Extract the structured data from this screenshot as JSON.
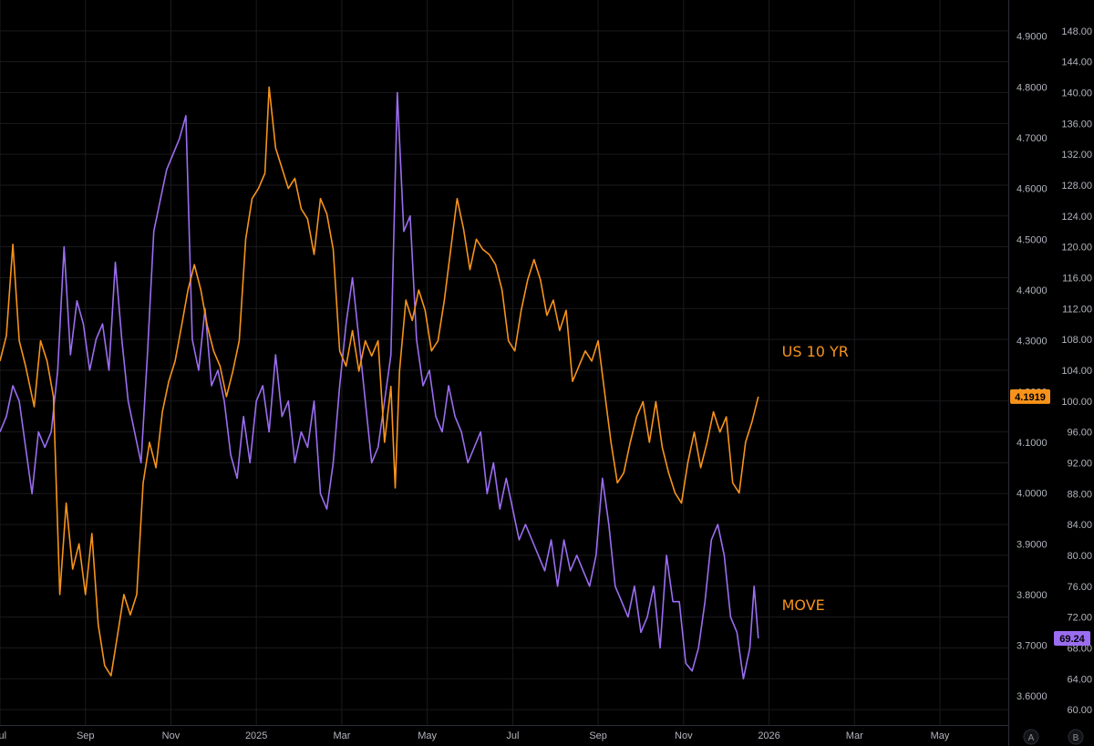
{
  "chart_data": {
    "type": "line",
    "title": "",
    "x_tick_labels": [
      "Jul",
      "Sep",
      "Nov",
      "2025",
      "Mar",
      "May",
      "Jul",
      "Sep",
      "Nov",
      "2026",
      "Mar",
      "May"
    ],
    "x_tick_months": [
      0,
      2,
      4,
      6,
      8,
      10,
      12,
      14,
      16,
      18,
      20,
      22
    ],
    "xlim_months": [
      0,
      23.6
    ],
    "grid": true,
    "y_axis_left_scale": {
      "ylim": [
        3.5429,
        4.9714
      ],
      "ticks": [
        "4.9000",
        "4.8000",
        "4.7000",
        "4.6000",
        "4.5000",
        "4.4000",
        "4.3000",
        "4.2000",
        "4.1000",
        "4.0000",
        "3.9000",
        "3.8000",
        "3.7000",
        "3.6000"
      ]
    },
    "y_axis_right_scale": {
      "ylim": [
        58.0,
        152.0
      ],
      "ticks": [
        "148.00",
        "144.00",
        "140.00",
        "136.00",
        "132.00",
        "128.00",
        "124.00",
        "120.00",
        "116.00",
        "112.00",
        "108.00",
        "104.00",
        "100.00",
        "96.00",
        "92.00",
        "88.00",
        "84.00",
        "80.00",
        "76.00",
        "72.00",
        "68.00",
        "64.00",
        "60.00"
      ]
    },
    "series": [
      {
        "name": "US 10 YR",
        "axis": "left",
        "color": "#f7931a",
        "last_value": "4.1919",
        "points": [
          [
            0,
            4.26
          ],
          [
            0.15,
            4.31
          ],
          [
            0.3,
            4.49
          ],
          [
            0.45,
            4.3
          ],
          [
            0.6,
            4.25
          ],
          [
            0.8,
            4.17
          ],
          [
            0.95,
            4.3
          ],
          [
            1.1,
            4.26
          ],
          [
            1.25,
            4.19
          ],
          [
            1.4,
            3.8
          ],
          [
            1.55,
            3.98
          ],
          [
            1.7,
            3.85
          ],
          [
            1.85,
            3.9
          ],
          [
            2.0,
            3.8
          ],
          [
            2.15,
            3.92
          ],
          [
            2.3,
            3.74
          ],
          [
            2.45,
            3.66
          ],
          [
            2.6,
            3.64
          ],
          [
            2.75,
            3.72
          ],
          [
            2.9,
            3.8
          ],
          [
            3.05,
            3.76
          ],
          [
            3.2,
            3.8
          ],
          [
            3.35,
            4.02
          ],
          [
            3.5,
            4.1
          ],
          [
            3.65,
            4.05
          ],
          [
            3.8,
            4.16
          ],
          [
            3.95,
            4.22
          ],
          [
            4.1,
            4.26
          ],
          [
            4.25,
            4.33
          ],
          [
            4.4,
            4.4
          ],
          [
            4.55,
            4.45
          ],
          [
            4.7,
            4.4
          ],
          [
            4.85,
            4.33
          ],
          [
            5.0,
            4.28
          ],
          [
            5.15,
            4.25
          ],
          [
            5.3,
            4.19
          ],
          [
            5.45,
            4.24
          ],
          [
            5.6,
            4.3
          ],
          [
            5.75,
            4.5
          ],
          [
            5.9,
            4.58
          ],
          [
            6.05,
            4.6
          ],
          [
            6.2,
            4.63
          ],
          [
            6.3,
            4.8
          ],
          [
            6.45,
            4.68
          ],
          [
            6.6,
            4.64
          ],
          [
            6.75,
            4.6
          ],
          [
            6.9,
            4.62
          ],
          [
            7.05,
            4.56
          ],
          [
            7.2,
            4.54
          ],
          [
            7.35,
            4.47
          ],
          [
            7.5,
            4.58
          ],
          [
            7.65,
            4.55
          ],
          [
            7.8,
            4.48
          ],
          [
            7.95,
            4.28
          ],
          [
            8.1,
            4.25
          ],
          [
            8.25,
            4.32
          ],
          [
            8.4,
            4.24
          ],
          [
            8.55,
            4.3
          ],
          [
            8.7,
            4.27
          ],
          [
            8.85,
            4.3
          ],
          [
            9.0,
            4.1
          ],
          [
            9.15,
            4.21
          ],
          [
            9.25,
            4.01
          ],
          [
            9.35,
            4.24
          ],
          [
            9.5,
            4.38
          ],
          [
            9.65,
            4.34
          ],
          [
            9.8,
            4.4
          ],
          [
            9.95,
            4.36
          ],
          [
            10.1,
            4.28
          ],
          [
            10.25,
            4.3
          ],
          [
            10.4,
            4.38
          ],
          [
            10.55,
            4.48
          ],
          [
            10.7,
            4.58
          ],
          [
            10.85,
            4.52
          ],
          [
            11.0,
            4.44
          ],
          [
            11.15,
            4.5
          ],
          [
            11.3,
            4.48
          ],
          [
            11.45,
            4.47
          ],
          [
            11.6,
            4.45
          ],
          [
            11.75,
            4.4
          ],
          [
            11.9,
            4.3
          ],
          [
            12.05,
            4.28
          ],
          [
            12.2,
            4.36
          ],
          [
            12.35,
            4.42
          ],
          [
            12.5,
            4.46
          ],
          [
            12.65,
            4.42
          ],
          [
            12.8,
            4.35
          ],
          [
            12.95,
            4.38
          ],
          [
            13.1,
            4.32
          ],
          [
            13.25,
            4.36
          ],
          [
            13.4,
            4.22
          ],
          [
            13.55,
            4.25
          ],
          [
            13.7,
            4.28
          ],
          [
            13.85,
            4.26
          ],
          [
            14.0,
            4.3
          ],
          [
            14.15,
            4.2
          ],
          [
            14.3,
            4.1
          ],
          [
            14.45,
            4.02
          ],
          [
            14.6,
            4.04
          ],
          [
            14.75,
            4.1
          ],
          [
            14.9,
            4.15
          ],
          [
            15.05,
            4.18
          ],
          [
            15.2,
            4.1
          ],
          [
            15.35,
            4.18
          ],
          [
            15.5,
            4.09
          ],
          [
            15.65,
            4.04
          ],
          [
            15.8,
            4.0
          ],
          [
            15.95,
            3.98
          ],
          [
            16.1,
            4.06
          ],
          [
            16.25,
            4.12
          ],
          [
            16.4,
            4.05
          ],
          [
            16.55,
            4.1
          ],
          [
            16.7,
            4.16
          ],
          [
            16.85,
            4.12
          ],
          [
            17.0,
            4.15
          ],
          [
            17.15,
            4.02
          ],
          [
            17.3,
            4.0
          ],
          [
            17.45,
            4.1
          ],
          [
            17.6,
            4.14
          ],
          [
            17.75,
            4.19
          ]
        ]
      },
      {
        "name": "MOVE",
        "axis": "right",
        "color": "#9b6df0",
        "last_value": "69.24",
        "points": [
          [
            0,
            96
          ],
          [
            0.15,
            98
          ],
          [
            0.3,
            102
          ],
          [
            0.45,
            100
          ],
          [
            0.6,
            94
          ],
          [
            0.75,
            88
          ],
          [
            0.9,
            96
          ],
          [
            1.05,
            94
          ],
          [
            1.2,
            96
          ],
          [
            1.35,
            104
          ],
          [
            1.5,
            120
          ],
          [
            1.65,
            106
          ],
          [
            1.8,
            113
          ],
          [
            1.95,
            110
          ],
          [
            2.1,
            104
          ],
          [
            2.25,
            108
          ],
          [
            2.4,
            110
          ],
          [
            2.55,
            104
          ],
          [
            2.7,
            118
          ],
          [
            2.85,
            108
          ],
          [
            3.0,
            100
          ],
          [
            3.15,
            96
          ],
          [
            3.3,
            92
          ],
          [
            3.45,
            106
          ],
          [
            3.6,
            122
          ],
          [
            3.75,
            126
          ],
          [
            3.9,
            130
          ],
          [
            4.05,
            132
          ],
          [
            4.2,
            134
          ],
          [
            4.35,
            137
          ],
          [
            4.5,
            108
          ],
          [
            4.65,
            104
          ],
          [
            4.8,
            112
          ],
          [
            4.95,
            102
          ],
          [
            5.1,
            104
          ],
          [
            5.25,
            100
          ],
          [
            5.4,
            93
          ],
          [
            5.55,
            90
          ],
          [
            5.7,
            98
          ],
          [
            5.85,
            92
          ],
          [
            6.0,
            100
          ],
          [
            6.15,
            102
          ],
          [
            6.3,
            96
          ],
          [
            6.45,
            106
          ],
          [
            6.6,
            98
          ],
          [
            6.75,
            100
          ],
          [
            6.9,
            92
          ],
          [
            7.05,
            96
          ],
          [
            7.2,
            94
          ],
          [
            7.35,
            100
          ],
          [
            7.5,
            88
          ],
          [
            7.65,
            86
          ],
          [
            7.8,
            92
          ],
          [
            7.95,
            102
          ],
          [
            8.1,
            110
          ],
          [
            8.25,
            116
          ],
          [
            8.4,
            108
          ],
          [
            8.55,
            100
          ],
          [
            8.7,
            92
          ],
          [
            8.85,
            94
          ],
          [
            9.0,
            100
          ],
          [
            9.15,
            106
          ],
          [
            9.3,
            140
          ],
          [
            9.45,
            122
          ],
          [
            9.6,
            124
          ],
          [
            9.75,
            108
          ],
          [
            9.9,
            102
          ],
          [
            10.05,
            104
          ],
          [
            10.2,
            98
          ],
          [
            10.35,
            96
          ],
          [
            10.5,
            102
          ],
          [
            10.65,
            98
          ],
          [
            10.8,
            96
          ],
          [
            10.95,
            92
          ],
          [
            11.1,
            94
          ],
          [
            11.25,
            96
          ],
          [
            11.4,
            88
          ],
          [
            11.55,
            92
          ],
          [
            11.7,
            86
          ],
          [
            11.85,
            90
          ],
          [
            12.0,
            86
          ],
          [
            12.15,
            82
          ],
          [
            12.3,
            84
          ],
          [
            12.45,
            82
          ],
          [
            12.6,
            80
          ],
          [
            12.75,
            78
          ],
          [
            12.9,
            82
          ],
          [
            13.05,
            76
          ],
          [
            13.2,
            82
          ],
          [
            13.35,
            78
          ],
          [
            13.5,
            80
          ],
          [
            13.65,
            78
          ],
          [
            13.8,
            76
          ],
          [
            13.95,
            80
          ],
          [
            14.1,
            90
          ],
          [
            14.25,
            84
          ],
          [
            14.4,
            76
          ],
          [
            14.55,
            74
          ],
          [
            14.7,
            72
          ],
          [
            14.85,
            76
          ],
          [
            15.0,
            70
          ],
          [
            15.15,
            72
          ],
          [
            15.3,
            76
          ],
          [
            15.45,
            68
          ],
          [
            15.6,
            80
          ],
          [
            15.75,
            74
          ],
          [
            15.9,
            74
          ],
          [
            16.05,
            66
          ],
          [
            16.2,
            65
          ],
          [
            16.35,
            68
          ],
          [
            16.5,
            74
          ],
          [
            16.65,
            82
          ],
          [
            16.8,
            84
          ],
          [
            16.95,
            80
          ],
          [
            17.1,
            72
          ],
          [
            17.25,
            70
          ],
          [
            17.4,
            64
          ],
          [
            17.55,
            68
          ],
          [
            17.65,
            76
          ],
          [
            17.75,
            69.24
          ]
        ]
      }
    ],
    "annotations": [
      {
        "text": "US 10 YR",
        "color": "#f7931a",
        "at_month": 18.3,
        "at_value_left": 4.28
      },
      {
        "text": "MOVE",
        "color": "#f7931a",
        "at_month": 18.3,
        "at_value_left": 3.78
      }
    ],
    "price_scale_buttons": [
      "A",
      "B"
    ]
  }
}
